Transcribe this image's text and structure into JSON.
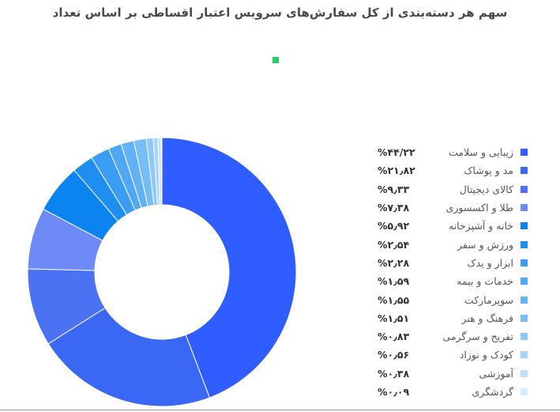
{
  "chart_data": {
    "type": "pie",
    "title": "سهم هر دسته‌بندی از کل سفارش‌های سرویس اعتبار اقساطی بر اساس تعداد",
    "legend_position": "right",
    "series_marker_color": "#1fd35f",
    "slices": [
      {
        "label": "زیبایی و سلامت",
        "value": 44.22,
        "display": "%۴۴/۲۲",
        "color": "#2f5dff"
      },
      {
        "label": "مد و پوشاک",
        "value": 21.82,
        "display": "%۲۱٫۸۲",
        "color": "#3b67f5"
      },
      {
        "label": "کالای دیجیتال",
        "value": 9.33,
        "display": "%۹٫۳۳",
        "color": "#4a72f3"
      },
      {
        "label": "طلا و اکسسوری",
        "value": 7.38,
        "display": "%۷٫۳۸",
        "color": "#6d8af6"
      },
      {
        "label": "خانه و آشپزخانه",
        "value": 5.92,
        "display": "%۵٫۹۲",
        "color": "#0b84f0"
      },
      {
        "label": "ورزش و سفر",
        "value": 2.54,
        "display": "%۲٫۵۴",
        "color": "#1e8ff0"
      },
      {
        "label": "ابزار و یدک",
        "value": 2.28,
        "display": "%۲٫۲۸",
        "color": "#3a9cf2"
      },
      {
        "label": "خدمات و بیمه",
        "value": 1.59,
        "display": "%۱٫۵۹",
        "color": "#4fa8f3"
      },
      {
        "label": "سوپرمارکت",
        "value": 1.55,
        "display": "%۱٫۵۵",
        "color": "#62b2f5"
      },
      {
        "label": "فرهنگ و هنر",
        "value": 1.51,
        "display": "%۱٫۵۱",
        "color": "#77bdf6"
      },
      {
        "label": "تفریح و سرگرمی",
        "value": 0.83,
        "display": "%۰٫۸۳",
        "color": "#8dc8f7"
      },
      {
        "label": "کودک و نوزاد",
        "value": 0.56,
        "display": "%۰٫۵۶",
        "color": "#a6d4f8"
      },
      {
        "label": "آموزشی",
        "value": 0.38,
        "display": "%۰٫۳۸",
        "color": "#bfe0fa"
      },
      {
        "label": "گردشگری",
        "value": 0.09,
        "display": "%۰٫۰۹",
        "color": "#d8ecfc"
      }
    ]
  }
}
